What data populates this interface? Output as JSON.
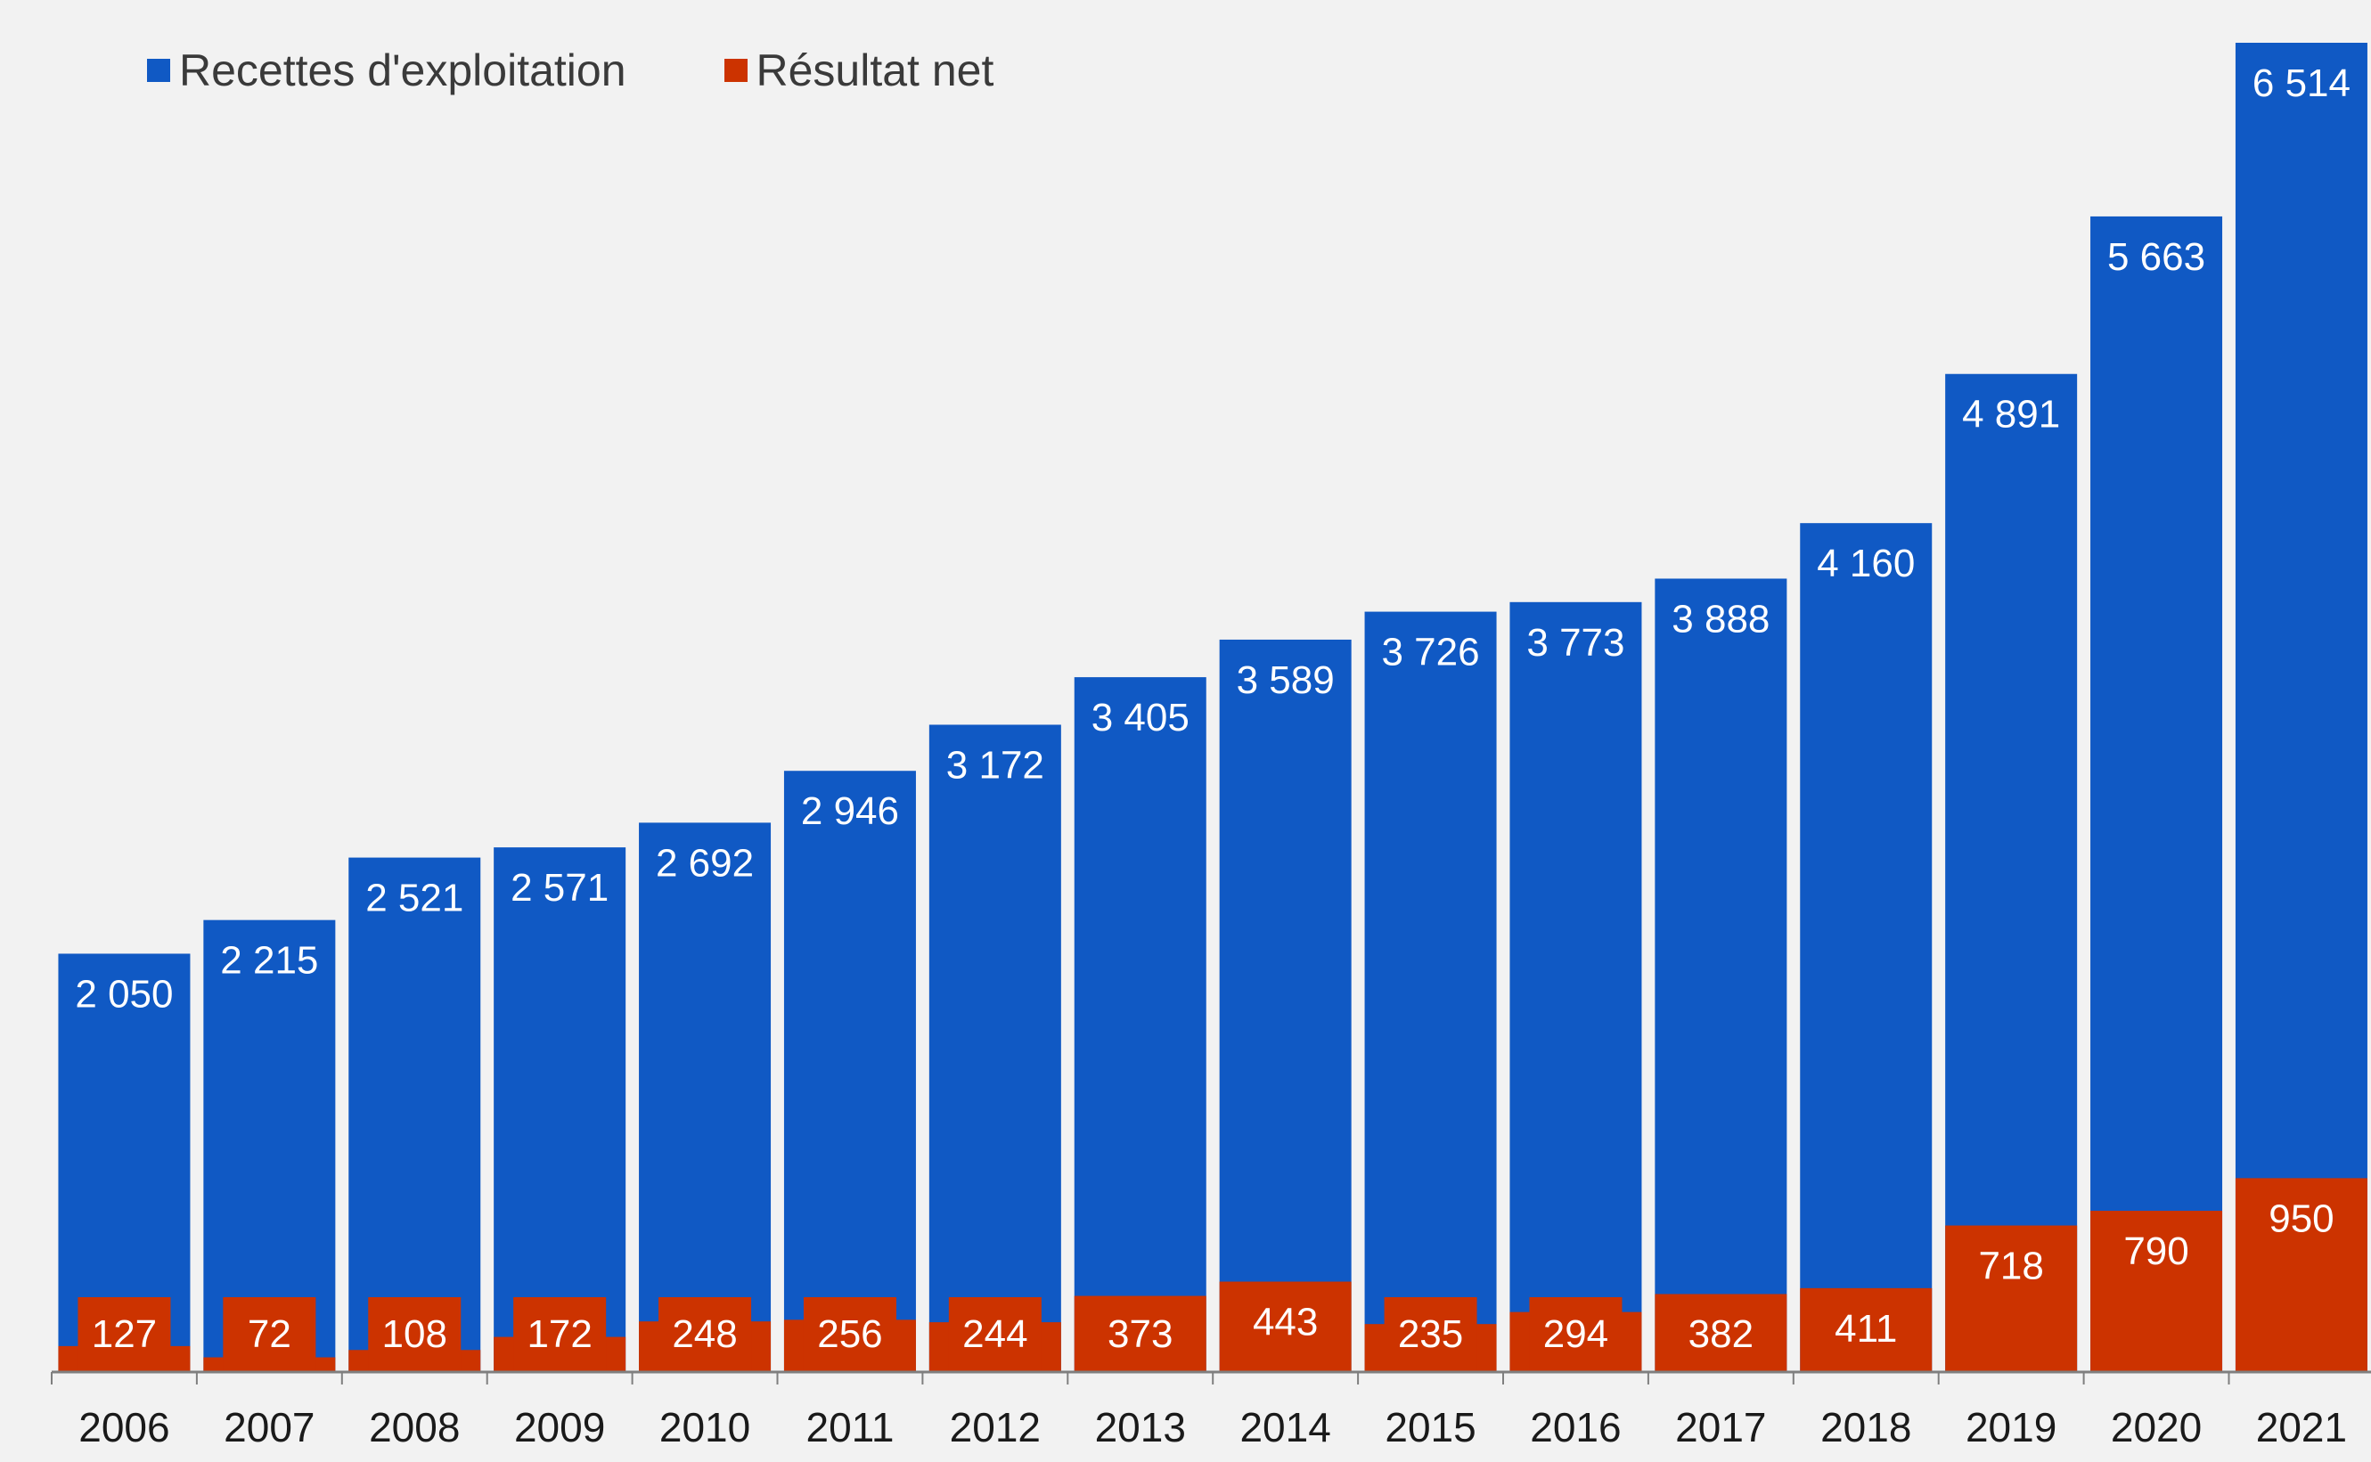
{
  "chart_data": {
    "type": "bar",
    "categories": [
      "2006",
      "2007",
      "2008",
      "2009",
      "2010",
      "2011",
      "2012",
      "2013",
      "2014",
      "2015",
      "2016",
      "2017",
      "2018",
      "2019",
      "2020",
      "2021"
    ],
    "series": [
      {
        "name": "Recettes d'exploitation",
        "color": "#1059c4",
        "values": [
          2050,
          2215,
          2521,
          2571,
          2692,
          2946,
          3172,
          3405,
          3589,
          3726,
          3773,
          3888,
          4160,
          4891,
          5663,
          6514
        ],
        "labels": [
          "2 050",
          "2 215",
          "2 521",
          "2 571",
          "2 692",
          "2 946",
          "3 172",
          "3 405",
          "3 589",
          "3 726",
          "3 773",
          "3 888",
          "4 160",
          "4 891",
          "5 663",
          "6 514"
        ]
      },
      {
        "name": "Résultat net",
        "color": "#cc3300",
        "values": [
          127,
          72,
          108,
          172,
          248,
          256,
          244,
          373,
          443,
          235,
          294,
          382,
          411,
          718,
          790,
          950
        ],
        "labels": [
          "127",
          "72",
          "108",
          "172",
          "248",
          "256",
          "244",
          "373",
          "443",
          "235",
          "294",
          "382",
          "411",
          "718",
          "790",
          "950"
        ]
      }
    ],
    "title": "",
    "xlabel": "",
    "ylabel": "",
    "ylim": [
      0,
      6600
    ],
    "grid": false,
    "legend_position": "top-left",
    "label_color": "#ffffff",
    "axis_color": "#7f7f7f",
    "tick_label_color": "#1a1a1a"
  }
}
